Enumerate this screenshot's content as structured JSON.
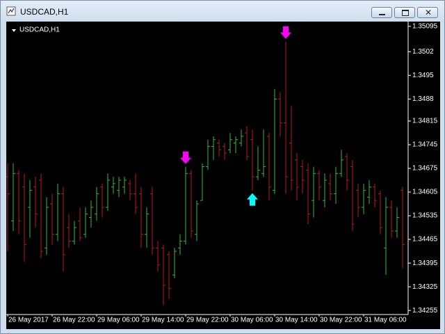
{
  "window_title": "USDCAD,H1",
  "chart_data": {
    "type": "ohlc",
    "title": "USDCAD,H1",
    "categories": [
      "26 May 2017",
      null,
      null,
      null,
      null,
      null,
      null,
      null,
      "26 May 22:00",
      null,
      null,
      null,
      null,
      null,
      null,
      null,
      "29 May 06:00",
      null,
      null,
      null,
      null,
      null,
      null,
      null,
      "29 May 14:00",
      null,
      null,
      null,
      null,
      null,
      null,
      null,
      "29 May 22:00",
      null,
      null,
      null,
      null,
      null,
      null,
      null,
      "30 May 06:00",
      null,
      null,
      null,
      null,
      null,
      null,
      null,
      "30 May 14:00",
      null,
      null,
      null,
      null,
      null,
      null,
      null,
      "30 May 22:00",
      null,
      null,
      null,
      null,
      null,
      null,
      null,
      "31 May 06:00",
      null,
      null,
      null,
      null,
      null,
      null,
      null
    ],
    "open": [
      1.3465,
      1.3452,
      1.3466,
      1.3462,
      1.3456,
      1.3462,
      1.3464,
      1.3444,
      1.3457,
      1.3448,
      1.346,
      1.345,
      1.3446,
      1.3452,
      1.3448,
      1.3453,
      1.3454,
      1.3462,
      1.3456,
      1.3462,
      1.3461,
      1.3462,
      1.3463,
      1.346,
      1.346,
      1.3448,
      1.346,
      1.3444,
      1.3444,
      1.3442,
      1.3436,
      1.3444,
      1.3446,
      1.3466,
      1.3448,
      1.3458,
      1.3468,
      1.3474,
      1.3475,
      1.3474,
      1.3473,
      1.3475,
      1.3475,
      1.3478,
      1.3476,
      1.3465,
      1.3466,
      1.3477,
      1.3461,
      1.3488,
      1.3481,
      1.3475,
      1.347,
      1.3468,
      1.3467,
      1.3458,
      1.3466,
      1.3458,
      1.3463,
      1.346,
      1.3466,
      1.3471,
      1.3468,
      1.3461,
      1.3456,
      1.3459,
      1.3462,
      1.346,
      1.3444,
      1.3456,
      1.3449,
      1.3461
    ],
    "high": [
      1.3469,
      1.3469,
      1.3467,
      1.3466,
      1.3464,
      1.3465,
      1.3466,
      1.3459,
      1.346,
      1.3463,
      1.3462,
      1.3454,
      1.3452,
      1.3456,
      1.3456,
      1.3458,
      1.3462,
      1.3463,
      1.3466,
      1.3465,
      1.3465,
      1.3465,
      1.3464,
      1.3466,
      1.3462,
      1.3456,
      1.3462,
      1.3446,
      1.3445,
      1.3443,
      1.3444,
      1.3448,
      1.3468,
      1.3467,
      1.3458,
      1.3469,
      1.3476,
      1.3477,
      1.3476,
      1.3475,
      1.3478,
      1.3477,
      1.3479,
      1.348,
      1.3479,
      1.3474,
      1.3479,
      1.3478,
      1.3491,
      1.349,
      1.3505,
      1.3486,
      1.3472,
      1.347,
      1.3469,
      1.3468,
      1.3467,
      1.3466,
      1.3466,
      1.3468,
      1.3473,
      1.3472,
      1.347,
      1.3463,
      1.3463,
      1.3464,
      1.3463,
      1.3461,
      1.3459,
      1.3458,
      1.3456,
      1.3462
    ],
    "low": [
      1.3443,
      1.3449,
      1.3448,
      1.344,
      1.3447,
      1.345,
      1.3441,
      1.3442,
      1.3445,
      1.3446,
      1.3437,
      1.3444,
      1.3445,
      1.3446,
      1.3447,
      1.345,
      1.3452,
      1.3453,
      1.3455,
      1.346,
      1.3459,
      1.346,
      1.3458,
      1.3454,
      1.3444,
      1.3444,
      1.3442,
      1.3437,
      1.3427,
      1.3429,
      1.3435,
      1.3442,
      1.3445,
      1.3447,
      1.3446,
      1.3458,
      1.3467,
      1.347,
      1.3471,
      1.347,
      1.3472,
      1.3472,
      1.3474,
      1.347,
      1.3461,
      1.3464,
      1.3465,
      1.3458,
      1.346,
      1.3477,
      1.346,
      1.3461,
      1.3458,
      1.346,
      1.3451,
      1.3453,
      1.3458,
      1.3456,
      1.3458,
      1.3457,
      1.3465,
      1.3461,
      1.3449,
      1.3453,
      1.3454,
      1.3457,
      1.3456,
      1.3448,
      1.3436,
      1.3447,
      1.3447,
      1.3438
    ],
    "close": [
      1.346,
      1.3466,
      1.3452,
      1.3445,
      1.3461,
      1.3454,
      1.3443,
      1.3456,
      1.3448,
      1.346,
      1.3442,
      1.3446,
      1.345,
      1.3447,
      1.3454,
      1.3456,
      1.346,
      1.3456,
      1.3464,
      1.3463,
      1.3464,
      1.3464,
      1.346,
      1.3456,
      1.3448,
      1.3454,
      1.3444,
      1.3439,
      1.3433,
      1.3432,
      1.3443,
      1.3446,
      1.3466,
      1.3449,
      1.3457,
      1.3468,
      1.3474,
      1.3476,
      1.3473,
      1.3472,
      1.3476,
      1.3476,
      1.3477,
      1.3471,
      1.3465,
      1.3467,
      1.3468,
      1.3462,
      1.3488,
      1.3481,
      1.3465,
      1.3464,
      1.3462,
      1.3464,
      1.3454,
      1.3466,
      1.3462,
      1.3464,
      1.346,
      1.3466,
      1.347,
      1.3464,
      1.3451,
      1.3456,
      1.3461,
      1.3462,
      1.3458,
      1.345,
      1.3456,
      1.3449,
      1.3453,
      1.3445
    ],
    "up_color": "#3cb83c",
    "down_color": "#b21e1e",
    "arrows": [
      {
        "index": 32,
        "direction": "down",
        "color": "#ff00ff"
      },
      {
        "index": 44,
        "direction": "up",
        "color": "#00ffff"
      },
      {
        "index": 50,
        "direction": "down",
        "color": "#ff00ff"
      }
    ],
    "ylim": [
      1.34243,
      1.35107
    ],
    "yticks": [
      1.35095,
      1.3502,
      1.3495,
      1.3488,
      1.34815,
      1.34745,
      1.34675,
      1.34605,
      1.34535,
      1.34465,
      1.34395,
      1.34325,
      1.34255
    ]
  }
}
